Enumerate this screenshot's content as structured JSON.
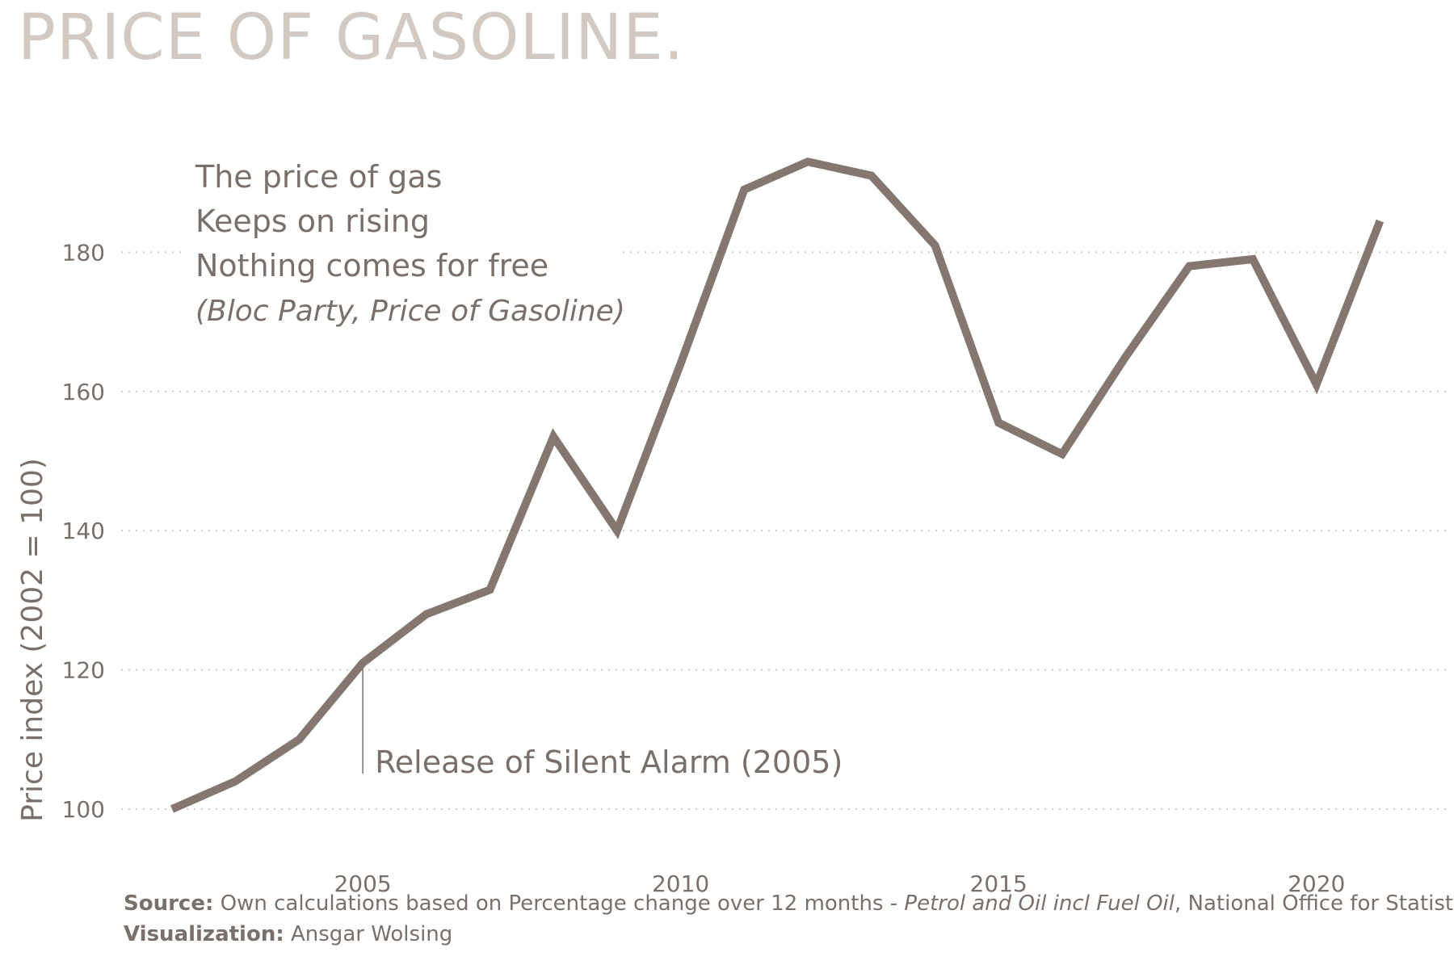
{
  "title": "PRICE OF GASOLINE.",
  "colors": {
    "line": "#85776f",
    "title": "#d3c9c3",
    "text": "#7a706b",
    "grid": "#cfcac6"
  },
  "chart_data": {
    "type": "line",
    "title": "PRICE OF GASOLINE.",
    "xlabel": "",
    "ylabel": "Price index (2002 = 100)",
    "xlim": [
      2001.2,
      2022.1
    ],
    "ylim": [
      95,
      200
    ],
    "x_ticks": [
      2005,
      2010,
      2015,
      2020
    ],
    "y_ticks": [
      100,
      120,
      140,
      160,
      180
    ],
    "grid": "horizontal dotted",
    "legend": "none",
    "series": [
      {
        "x": [
          2002,
          2003,
          2004,
          2005,
          2006,
          2007,
          2008,
          2009,
          2010,
          2011,
          2012,
          2013,
          2014,
          2015,
          2016,
          2017,
          2018,
          2019,
          2020,
          2021
        ],
        "values": [
          100,
          104,
          110,
          121,
          128,
          131.5,
          153.5,
          140,
          164,
          189,
          193,
          191,
          181,
          155.5,
          151,
          165,
          178,
          179,
          161,
          184.5
        ]
      }
    ],
    "annotations": {
      "quote_lines": [
        "The price of gas",
        "Keeps on rising",
        "Nothing comes for free"
      ],
      "quote_source": "(Bloc Party, Price of Gasoline)",
      "event_label": "Release of Silent Alarm (2005)",
      "event_x": 2005,
      "event_y": 121
    }
  },
  "footer": {
    "source_label": "Source:",
    "source_text_1": "Own calculations based on Percentage change over 12 months - ",
    "source_italic": "Petrol and Oil incl Fuel Oil",
    "source_text_2": ", National Office for Statistics, UK",
    "viz_label": "Visualization:",
    "viz_text": "Ansgar Wolsing"
  }
}
